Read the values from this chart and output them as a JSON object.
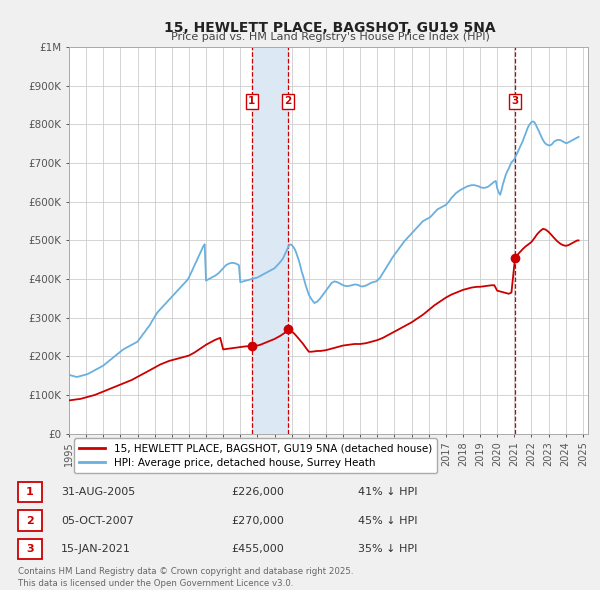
{
  "title": "15, HEWLETT PLACE, BAGSHOT, GU19 5NA",
  "subtitle": "Price paid vs. HM Land Registry's House Price Index (HPI)",
  "bg_color": "#f0f0f0",
  "plot_bg_color": "#ffffff",
  "grid_color": "#cccccc",
  "hpi_color": "#6ab0de",
  "price_color": "#cc0000",
  "sale_marker_color": "#cc0000",
  "vline_color": "#cc0000",
  "vshade_color": "#dce9f5",
  "ylim": [
    0,
    1000000
  ],
  "yticks": [
    0,
    100000,
    200000,
    300000,
    400000,
    500000,
    600000,
    700000,
    800000,
    900000,
    1000000
  ],
  "ytick_labels": [
    "£0",
    "£100K",
    "£200K",
    "£300K",
    "£400K",
    "£500K",
    "£600K",
    "£700K",
    "£800K",
    "£900K",
    "£1M"
  ],
  "sales": [
    {
      "year": 2005.67,
      "price": 226000,
      "label": "1"
    },
    {
      "year": 2007.77,
      "price": 270000,
      "label": "2"
    },
    {
      "year": 2021.04,
      "price": 455000,
      "label": "3"
    }
  ],
  "sale_vlines": [
    2005.67,
    2007.77,
    2021.04
  ],
  "vshade_pairs": [
    [
      2005.67,
      2007.77
    ]
  ],
  "legend_entries": [
    {
      "label": "15, HEWLETT PLACE, BAGSHOT, GU19 5NA (detached house)",
      "color": "#cc0000"
    },
    {
      "label": "HPI: Average price, detached house, Surrey Heath",
      "color": "#6ab0de"
    }
  ],
  "table_rows": [
    {
      "num": "1",
      "date": "31-AUG-2005",
      "price": "£226,000",
      "pct": "41% ↓ HPI"
    },
    {
      "num": "2",
      "date": "05-OCT-2007",
      "price": "£270,000",
      "pct": "45% ↓ HPI"
    },
    {
      "num": "3",
      "date": "15-JAN-2021",
      "price": "£455,000",
      "pct": "35% ↓ HPI"
    }
  ],
  "footer": "Contains HM Land Registry data © Crown copyright and database right 2025.\nThis data is licensed under the Open Government Licence v3.0.",
  "hpi_data": {
    "years": [
      1995.0,
      1995.08,
      1995.17,
      1995.25,
      1995.33,
      1995.42,
      1995.5,
      1995.58,
      1995.67,
      1995.75,
      1995.83,
      1995.92,
      1996.0,
      1996.08,
      1996.17,
      1996.25,
      1996.33,
      1996.42,
      1996.5,
      1996.58,
      1996.67,
      1996.75,
      1996.83,
      1996.92,
      1997.0,
      1997.08,
      1997.17,
      1997.25,
      1997.33,
      1997.42,
      1997.5,
      1997.58,
      1997.67,
      1997.75,
      1997.83,
      1997.92,
      1998.0,
      1998.08,
      1998.17,
      1998.25,
      1998.33,
      1998.42,
      1998.5,
      1998.58,
      1998.67,
      1998.75,
      1998.83,
      1998.92,
      1999.0,
      1999.08,
      1999.17,
      1999.25,
      1999.33,
      1999.42,
      1999.5,
      1999.58,
      1999.67,
      1999.75,
      1999.83,
      1999.92,
      2000.0,
      2000.08,
      2000.17,
      2000.25,
      2000.33,
      2000.42,
      2000.5,
      2000.58,
      2000.67,
      2000.75,
      2000.83,
      2000.92,
      2001.0,
      2001.08,
      2001.17,
      2001.25,
      2001.33,
      2001.42,
      2001.5,
      2001.58,
      2001.67,
      2001.75,
      2001.83,
      2001.92,
      2002.0,
      2002.08,
      2002.17,
      2002.25,
      2002.33,
      2002.42,
      2002.5,
      2002.58,
      2002.67,
      2002.75,
      2002.83,
      2002.92,
      2003.0,
      2003.08,
      2003.17,
      2003.25,
      2003.33,
      2003.42,
      2003.5,
      2003.58,
      2003.67,
      2003.75,
      2003.83,
      2003.92,
      2004.0,
      2004.08,
      2004.17,
      2004.25,
      2004.33,
      2004.42,
      2004.5,
      2004.58,
      2004.67,
      2004.75,
      2004.83,
      2004.92,
      2005.0,
      2005.08,
      2005.17,
      2005.25,
      2005.33,
      2005.42,
      2005.5,
      2005.58,
      2005.67,
      2005.75,
      2005.83,
      2005.92,
      2006.0,
      2006.08,
      2006.17,
      2006.25,
      2006.33,
      2006.42,
      2006.5,
      2006.58,
      2006.67,
      2006.75,
      2006.83,
      2006.92,
      2007.0,
      2007.08,
      2007.17,
      2007.25,
      2007.33,
      2007.42,
      2007.5,
      2007.58,
      2007.67,
      2007.75,
      2007.83,
      2007.92,
      2008.0,
      2008.08,
      2008.17,
      2008.25,
      2008.33,
      2008.42,
      2008.5,
      2008.58,
      2008.67,
      2008.75,
      2008.83,
      2008.92,
      2009.0,
      2009.08,
      2009.17,
      2009.25,
      2009.33,
      2009.42,
      2009.5,
      2009.58,
      2009.67,
      2009.75,
      2009.83,
      2009.92,
      2010.0,
      2010.08,
      2010.17,
      2010.25,
      2010.33,
      2010.42,
      2010.5,
      2010.58,
      2010.67,
      2010.75,
      2010.83,
      2010.92,
      2011.0,
      2011.08,
      2011.17,
      2011.25,
      2011.33,
      2011.42,
      2011.5,
      2011.58,
      2011.67,
      2011.75,
      2011.83,
      2011.92,
      2012.0,
      2012.08,
      2012.17,
      2012.25,
      2012.33,
      2012.42,
      2012.5,
      2012.58,
      2012.67,
      2012.75,
      2012.83,
      2012.92,
      2013.0,
      2013.08,
      2013.17,
      2013.25,
      2013.33,
      2013.42,
      2013.5,
      2013.58,
      2013.67,
      2013.75,
      2013.83,
      2013.92,
      2014.0,
      2014.08,
      2014.17,
      2014.25,
      2014.33,
      2014.42,
      2014.5,
      2014.58,
      2014.67,
      2014.75,
      2014.83,
      2014.92,
      2015.0,
      2015.08,
      2015.17,
      2015.25,
      2015.33,
      2015.42,
      2015.5,
      2015.58,
      2015.67,
      2015.75,
      2015.83,
      2015.92,
      2016.0,
      2016.08,
      2016.17,
      2016.25,
      2016.33,
      2016.42,
      2016.5,
      2016.58,
      2016.67,
      2016.75,
      2016.83,
      2016.92,
      2017.0,
      2017.08,
      2017.17,
      2017.25,
      2017.33,
      2017.42,
      2017.5,
      2017.58,
      2017.67,
      2017.75,
      2017.83,
      2017.92,
      2018.0,
      2018.08,
      2018.17,
      2018.25,
      2018.33,
      2018.42,
      2018.5,
      2018.58,
      2018.67,
      2018.75,
      2018.83,
      2018.92,
      2019.0,
      2019.08,
      2019.17,
      2019.25,
      2019.33,
      2019.42,
      2019.5,
      2019.58,
      2019.67,
      2019.75,
      2019.83,
      2019.92,
      2020.0,
      2020.08,
      2020.17,
      2020.25,
      2020.33,
      2020.42,
      2020.5,
      2020.58,
      2020.67,
      2020.75,
      2020.83,
      2020.92,
      2021.0,
      2021.08,
      2021.17,
      2021.25,
      2021.33,
      2021.42,
      2021.5,
      2021.58,
      2021.67,
      2021.75,
      2021.83,
      2021.92,
      2022.0,
      2022.08,
      2022.17,
      2022.25,
      2022.33,
      2022.42,
      2022.5,
      2022.58,
      2022.67,
      2022.75,
      2022.83,
      2022.92,
      2023.0,
      2023.08,
      2023.17,
      2023.25,
      2023.33,
      2023.42,
      2023.5,
      2023.58,
      2023.67,
      2023.75,
      2023.83,
      2023.92,
      2024.0,
      2024.08,
      2024.17,
      2024.25,
      2024.33,
      2024.42,
      2024.5,
      2024.58,
      2024.67,
      2024.75
    ],
    "values": [
      152000,
      151000,
      150000,
      149000,
      148000,
      147000,
      147000,
      148000,
      149000,
      150000,
      151000,
      152000,
      153000,
      154000,
      156000,
      158000,
      160000,
      162000,
      164000,
      166000,
      168000,
      170000,
      172000,
      174000,
      176000,
      179000,
      182000,
      185000,
      188000,
      191000,
      194000,
      197000,
      200000,
      203000,
      206000,
      209000,
      212000,
      215000,
      218000,
      220000,
      222000,
      224000,
      226000,
      228000,
      230000,
      232000,
      234000,
      236000,
      238000,
      243000,
      248000,
      253000,
      258000,
      263000,
      268000,
      273000,
      278000,
      283000,
      290000,
      296000,
      302000,
      308000,
      314000,
      318000,
      322000,
      326000,
      330000,
      334000,
      338000,
      342000,
      346000,
      350000,
      354000,
      358000,
      362000,
      366000,
      370000,
      374000,
      378000,
      382000,
      386000,
      390000,
      394000,
      398000,
      404000,
      412000,
      420000,
      428000,
      436000,
      444000,
      452000,
      460000,
      468000,
      476000,
      484000,
      490000,
      396000,
      398000,
      400000,
      402000,
      404000,
      406000,
      408000,
      410000,
      413000,
      416000,
      420000,
      424000,
      428000,
      432000,
      436000,
      438000,
      440000,
      441000,
      442000,
      442000,
      441000,
      440000,
      438000,
      436000,
      392000,
      393000,
      394000,
      395000,
      396000,
      397000,
      398000,
      399000,
      400000,
      401000,
      402000,
      403000,
      404000,
      406000,
      408000,
      410000,
      412000,
      414000,
      416000,
      418000,
      420000,
      422000,
      424000,
      426000,
      428000,
      432000,
      436000,
      440000,
      444000,
      449000,
      454000,
      462000,
      470000,
      478000,
      486000,
      490000,
      488000,
      484000,
      478000,
      470000,
      460000,
      448000,
      435000,
      420000,
      408000,
      395000,
      382000,
      370000,
      360000,
      353000,
      347000,
      342000,
      338000,
      340000,
      342000,
      346000,
      350000,
      355000,
      360000,
      365000,
      370000,
      375000,
      380000,
      385000,
      390000,
      392000,
      394000,
      393000,
      392000,
      390000,
      388000,
      386000,
      384000,
      383000,
      382000,
      382000,
      382000,
      383000,
      384000,
      385000,
      386000,
      386000,
      385000,
      384000,
      382000,
      381000,
      381000,
      382000,
      383000,
      385000,
      387000,
      389000,
      391000,
      392000,
      393000,
      394000,
      396000,
      400000,
      404000,
      410000,
      416000,
      422000,
      428000,
      434000,
      440000,
      446000,
      452000,
      458000,
      463000,
      468000,
      473000,
      478000,
      483000,
      488000,
      493000,
      498000,
      502000,
      506000,
      510000,
      514000,
      518000,
      522000,
      526000,
      530000,
      534000,
      538000,
      542000,
      546000,
      550000,
      552000,
      554000,
      556000,
      558000,
      560000,
      564000,
      568000,
      572000,
      576000,
      580000,
      582000,
      584000,
      586000,
      588000,
      590000,
      592000,
      596000,
      600000,
      605000,
      610000,
      614000,
      618000,
      622000,
      625000,
      628000,
      630000,
      632000,
      634000,
      636000,
      638000,
      640000,
      641000,
      642000,
      643000,
      643000,
      643000,
      642000,
      641000,
      640000,
      638000,
      637000,
      636000,
      636000,
      637000,
      638000,
      640000,
      643000,
      646000,
      649000,
      652000,
      654000,
      635000,
      625000,
      618000,
      630000,
      645000,
      658000,
      670000,
      678000,
      686000,
      694000,
      702000,
      706000,
      710000,
      718000,
      726000,
      734000,
      742000,
      750000,
      758000,
      768000,
      778000,
      788000,
      796000,
      802000,
      806000,
      808000,
      806000,
      800000,
      792000,
      784000,
      776000,
      768000,
      760000,
      754000,
      750000,
      748000,
      746000,
      746000,
      748000,
      752000,
      756000,
      758000,
      760000,
      760000,
      760000,
      758000,
      756000,
      754000,
      752000,
      752000,
      754000,
      756000,
      758000,
      760000,
      762000,
      764000,
      766000,
      768000
    ]
  },
  "price_data": {
    "years": [
      1995.0,
      1995.17,
      1995.33,
      1995.5,
      1995.67,
      1995.83,
      1996.0,
      1996.17,
      1996.33,
      1996.5,
      1996.67,
      1996.83,
      1997.0,
      1997.17,
      1997.33,
      1997.5,
      1997.67,
      1997.83,
      1998.0,
      1998.17,
      1998.33,
      1998.5,
      1998.67,
      1998.83,
      1999.0,
      1999.17,
      1999.33,
      1999.5,
      1999.67,
      1999.83,
      2000.0,
      2000.17,
      2000.33,
      2000.5,
      2000.67,
      2000.83,
      2001.0,
      2001.17,
      2001.33,
      2001.5,
      2001.67,
      2001.83,
      2002.0,
      2002.17,
      2002.33,
      2002.5,
      2002.67,
      2002.83,
      2003.0,
      2003.17,
      2003.33,
      2003.5,
      2003.67,
      2003.83,
      2004.0,
      2004.17,
      2004.33,
      2004.5,
      2004.67,
      2004.83,
      2005.0,
      2005.17,
      2005.33,
      2005.5,
      2005.67,
      2006.0,
      2006.17,
      2006.33,
      2006.5,
      2006.67,
      2006.83,
      2007.0,
      2007.17,
      2007.33,
      2007.5,
      2007.67,
      2007.77,
      2008.0,
      2008.17,
      2008.33,
      2008.5,
      2008.67,
      2008.83,
      2009.0,
      2009.17,
      2009.33,
      2009.5,
      2009.67,
      2009.83,
      2010.0,
      2010.17,
      2010.33,
      2010.5,
      2010.67,
      2010.83,
      2011.0,
      2011.17,
      2011.33,
      2011.5,
      2011.67,
      2011.83,
      2012.0,
      2012.17,
      2012.33,
      2012.5,
      2012.67,
      2012.83,
      2013.0,
      2013.17,
      2013.33,
      2013.5,
      2013.67,
      2013.83,
      2014.0,
      2014.17,
      2014.33,
      2014.5,
      2014.67,
      2014.83,
      2015.0,
      2015.17,
      2015.33,
      2015.5,
      2015.67,
      2015.83,
      2016.0,
      2016.17,
      2016.33,
      2016.5,
      2016.67,
      2016.83,
      2017.0,
      2017.17,
      2017.33,
      2017.5,
      2017.67,
      2017.83,
      2018.0,
      2018.17,
      2018.33,
      2018.5,
      2018.67,
      2018.83,
      2019.0,
      2019.17,
      2019.33,
      2019.5,
      2019.67,
      2019.83,
      2020.0,
      2020.17,
      2020.33,
      2020.5,
      2020.67,
      2020.83,
      2021.04,
      2021.17,
      2021.33,
      2021.5,
      2021.67,
      2021.83,
      2022.0,
      2022.17,
      2022.33,
      2022.5,
      2022.67,
      2022.83,
      2023.0,
      2023.17,
      2023.33,
      2023.5,
      2023.67,
      2023.83,
      2024.0,
      2024.17,
      2024.33,
      2024.5,
      2024.67,
      2024.75
    ],
    "values": [
      86000,
      87000,
      88000,
      89000,
      90000,
      92000,
      94000,
      96000,
      98000,
      100000,
      103000,
      106000,
      109000,
      112000,
      115000,
      118000,
      121000,
      124000,
      127000,
      130000,
      133000,
      136000,
      139000,
      143000,
      147000,
      151000,
      155000,
      159000,
      163000,
      167000,
      171000,
      175000,
      179000,
      182000,
      185000,
      188000,
      190000,
      192000,
      194000,
      196000,
      198000,
      200000,
      202000,
      206000,
      210000,
      215000,
      220000,
      225000,
      230000,
      234000,
      238000,
      242000,
      245000,
      248000,
      218000,
      219000,
      220000,
      221000,
      222000,
      223000,
      224000,
      225000,
      226000,
      226000,
      226000,
      228000,
      230000,
      233000,
      236000,
      239000,
      242000,
      245000,
      249000,
      253000,
      258000,
      263000,
      270000,
      265000,
      258000,
      250000,
      241000,
      232000,
      222000,
      212000,
      212000,
      213000,
      214000,
      214000,
      215000,
      216000,
      218000,
      220000,
      222000,
      224000,
      226000,
      228000,
      229000,
      230000,
      231000,
      232000,
      232000,
      232000,
      233000,
      234000,
      236000,
      238000,
      240000,
      242000,
      245000,
      248000,
      252000,
      256000,
      260000,
      264000,
      268000,
      272000,
      276000,
      280000,
      284000,
      288000,
      293000,
      298000,
      303000,
      308000,
      314000,
      320000,
      326000,
      332000,
      337000,
      342000,
      347000,
      352000,
      356000,
      360000,
      363000,
      366000,
      369000,
      372000,
      374000,
      376000,
      378000,
      379000,
      380000,
      380000,
      381000,
      382000,
      383000,
      384000,
      384000,
      370000,
      368000,
      366000,
      364000,
      362000,
      365000,
      455000,
      462000,
      470000,
      478000,
      485000,
      490000,
      496000,
      506000,
      516000,
      524000,
      530000,
      528000,
      522000,
      514000,
      506000,
      498000,
      492000,
      488000,
      486000,
      488000,
      492000,
      496000,
      500000,
      500000
    ]
  }
}
